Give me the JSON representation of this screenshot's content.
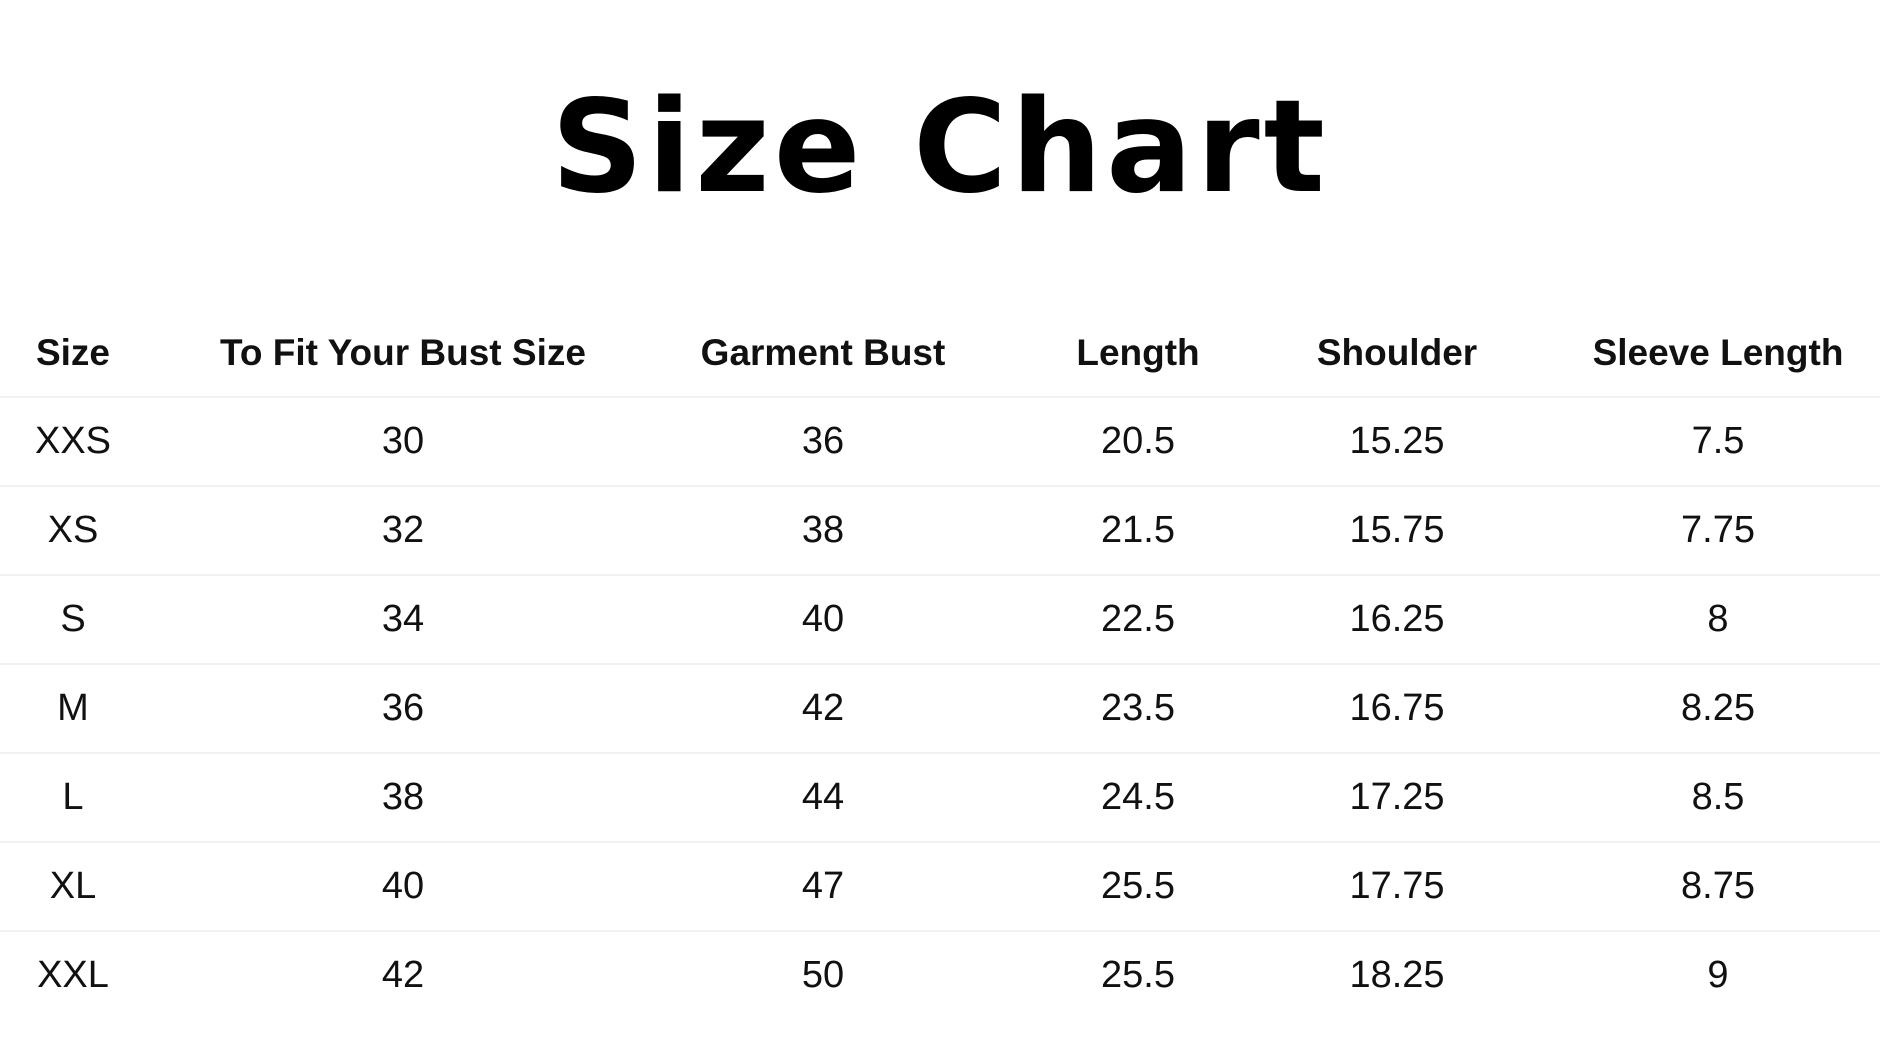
{
  "title": "Size Chart",
  "headers": [
    "Size",
    "To Fit Your Bust Size",
    "Garment Bust",
    "Length",
    "Shoulder",
    "Sleeve Length"
  ],
  "rows": [
    [
      "XXS",
      "30",
      "36",
      "20.5",
      "15.25",
      "7.5"
    ],
    [
      "XS",
      "32",
      "38",
      "21.5",
      "15.75",
      "7.75"
    ],
    [
      "S",
      "34",
      "40",
      "22.5",
      "16.25",
      "8"
    ],
    [
      "M",
      "36",
      "42",
      "23.5",
      "16.75",
      "8.25"
    ],
    [
      "L",
      "38",
      "44",
      "24.5",
      "17.25",
      "8.5"
    ],
    [
      "XL",
      "40",
      "47",
      "25.5",
      "17.75",
      "8.75"
    ],
    [
      "XXL",
      "42",
      "50",
      "25.5",
      "18.25",
      "9"
    ]
  ]
}
